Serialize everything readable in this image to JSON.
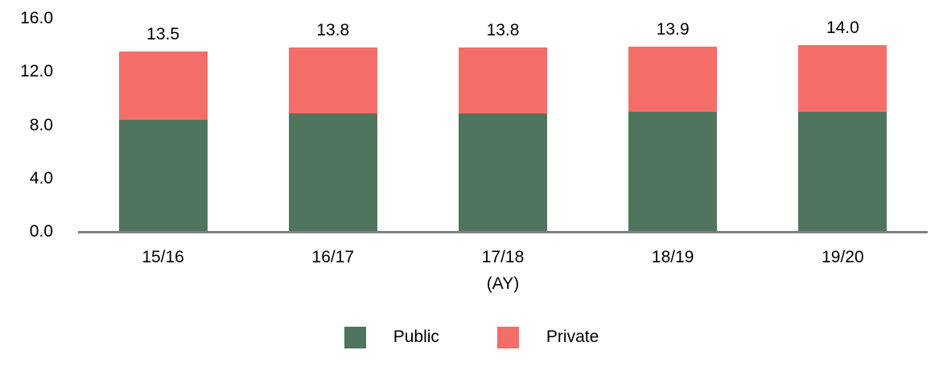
{
  "chart_data": {
    "type": "bar",
    "stacked": true,
    "categories": [
      "15/16",
      "16/17",
      "17/18",
      "18/19",
      "19/20"
    ],
    "series": [
      {
        "name": "Public",
        "color": "#4f755e",
        "values": [
          8.4,
          8.9,
          8.9,
          9.0,
          9.0
        ]
      },
      {
        "name": "Private",
        "color": "#f36e68",
        "values": [
          5.1,
          4.9,
          4.9,
          4.9,
          5.0
        ]
      }
    ],
    "totals_labels": [
      "13.5",
      "13.8",
      "13.8",
      "13.9",
      "14.0"
    ],
    "title": "",
    "xlabel": "(AY)",
    "ylabel": "",
    "ylim": [
      0,
      16
    ],
    "yticks": [
      {
        "value": 0,
        "label": "0.0"
      },
      {
        "value": 4,
        "label": "4.0"
      },
      {
        "value": 8,
        "label": "8.0"
      },
      {
        "value": 12,
        "label": "12.0"
      },
      {
        "value": 16,
        "label": "16.0"
      }
    ],
    "grid": false,
    "legend_position": "bottom",
    "axis_line_color": "#808080",
    "legend": [
      {
        "label": "Public",
        "color": "#4f755e"
      },
      {
        "label": "Private",
        "color": "#f36e68"
      }
    ]
  }
}
